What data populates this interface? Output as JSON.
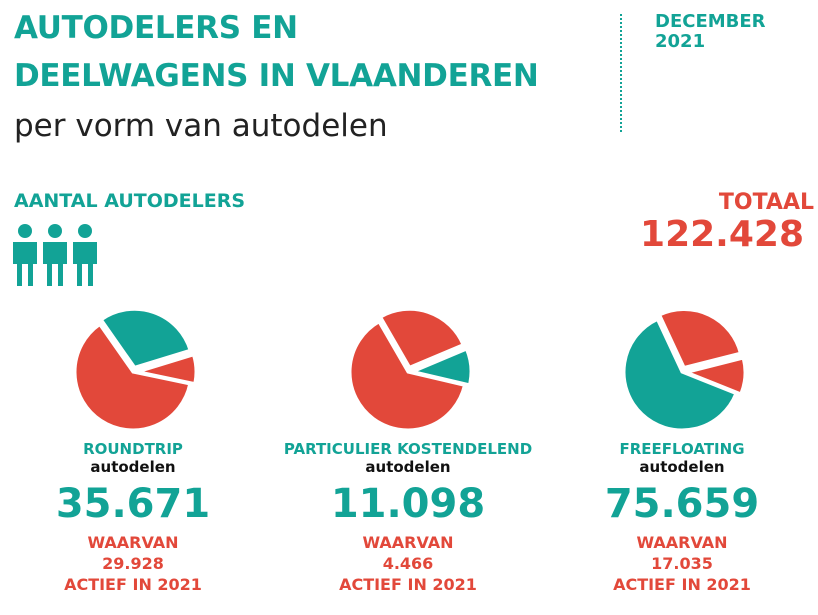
{
  "header": {
    "title_line1": "AUTODELERS EN",
    "title_line2": "DEELWAGENS IN VLAANDEREN",
    "subtitle": "per vorm van autodelen",
    "date_line1": "DECEMBER",
    "date_line2": "2021"
  },
  "section_label": "AANTAL AUTODELERS",
  "total": {
    "label": "TOTAAL",
    "value": "122.428"
  },
  "cards": [
    {
      "name": "ROUNDTRIP",
      "suffix": "autodelen",
      "count": "35.671",
      "note_line1": "WAARVAN",
      "active": "29.928",
      "note_line2": "ACTIEF IN 2021",
      "segments": [
        {
          "value": 30,
          "color": "#12a396"
        },
        {
          "value": 8,
          "color": "#e2483a"
        },
        {
          "value": 62,
          "color": "#e2483a"
        }
      ]
    },
    {
      "name": "PARTICULIER KOSTENDELEND",
      "suffix": "autodelen",
      "count": "11.098",
      "note_line1": "WAARVAN",
      "active": "4.466",
      "note_line2": "ACTIEF IN 2021",
      "segments": [
        {
          "value": 27,
          "color": "#e2483a"
        },
        {
          "value": 10,
          "color": "#12a396"
        },
        {
          "value": 63,
          "color": "#e2483a"
        }
      ]
    },
    {
      "name": "FREEFLOATING",
      "suffix": "autodelen",
      "count": "75.659",
      "note_line1": "WAARVAN",
      "active": "17.035",
      "note_line2": "ACTIEF IN 2021",
      "segments": [
        {
          "value": 28,
          "color": "#e2483a"
        },
        {
          "value": 10,
          "color": "#e2483a"
        },
        {
          "value": 62,
          "color": "#12a396"
        }
      ]
    }
  ]
}
